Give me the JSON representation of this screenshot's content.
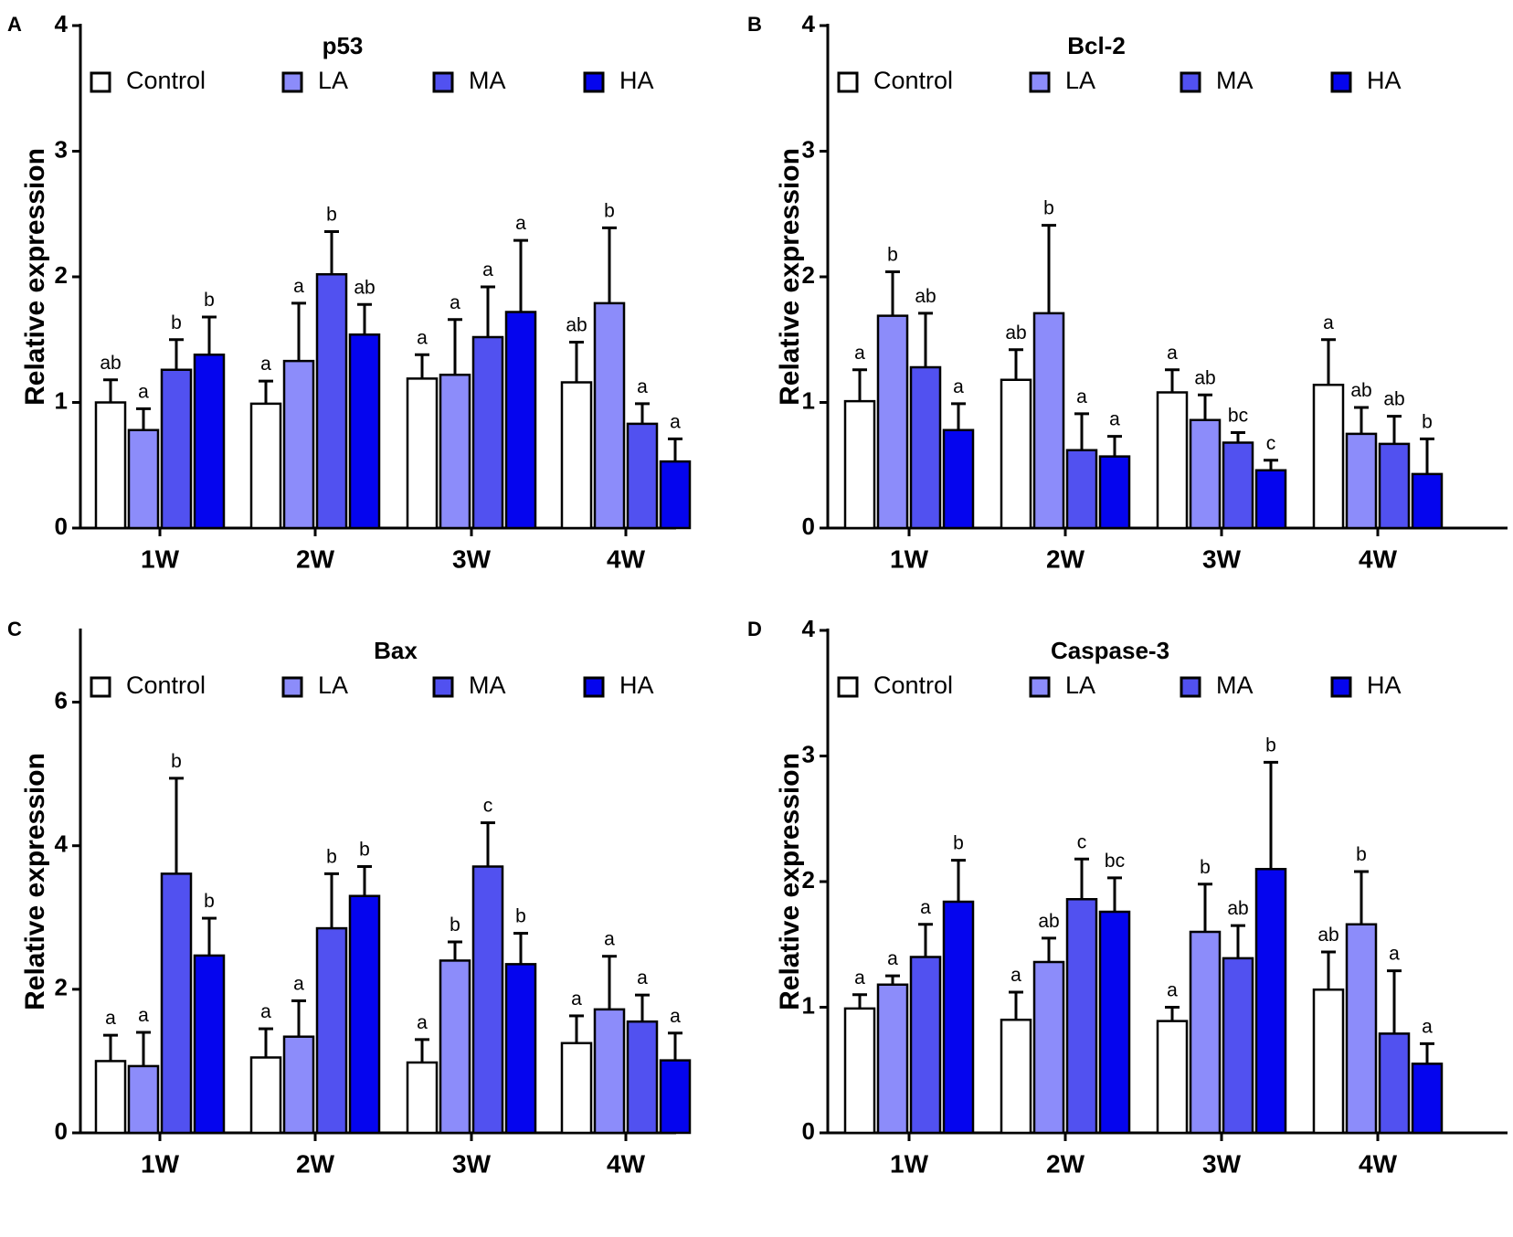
{
  "colors": {
    "Control": "#ffffff",
    "LA": "#8c8cfa",
    "MA": "#5151f0",
    "HA": "#0505ee",
    "stroke": "#000000"
  },
  "chart_data": [
    {
      "panel": "A",
      "type": "bar",
      "title": "p53",
      "ylabel": "Relative expression",
      "xlabel": "",
      "ylim": [
        0,
        4
      ],
      "yticks": [
        0,
        1,
        2,
        3,
        4
      ],
      "categories": [
        "1W",
        "2W",
        "3W",
        "4W"
      ],
      "legend": [
        "Control",
        "LA",
        "MA",
        "HA"
      ],
      "legend_position": "top",
      "series": [
        {
          "name": "Control",
          "values": [
            1.0,
            0.99,
            1.19,
            1.16
          ],
          "errors": [
            0.18,
            0.18,
            0.19,
            0.32
          ],
          "labels": [
            "ab",
            "a",
            "a",
            "ab"
          ]
        },
        {
          "name": "LA",
          "values": [
            0.78,
            1.33,
            1.22,
            1.79
          ],
          "errors": [
            0.17,
            0.46,
            0.44,
            0.6
          ],
          "labels": [
            "a",
            "a",
            "a",
            "b"
          ]
        },
        {
          "name": "MA",
          "values": [
            1.26,
            2.02,
            1.52,
            0.83
          ],
          "errors": [
            0.24,
            0.34,
            0.4,
            0.16
          ],
          "labels": [
            "b",
            "b",
            "a",
            "a"
          ]
        },
        {
          "name": "HA",
          "values": [
            1.38,
            1.54,
            1.72,
            0.53
          ],
          "errors": [
            0.3,
            0.24,
            0.57,
            0.18
          ],
          "labels": [
            "b",
            "ab",
            "a",
            "a"
          ]
        }
      ]
    },
    {
      "panel": "B",
      "type": "bar",
      "title": "Bcl-2",
      "ylabel": "Relative expression",
      "xlabel": "",
      "ylim": [
        0,
        4
      ],
      "yticks": [
        0,
        1,
        2,
        3,
        4
      ],
      "categories": [
        "1W",
        "2W",
        "3W",
        "4W"
      ],
      "legend": [
        "Control",
        "LA",
        "MA",
        "HA"
      ],
      "legend_position": "top",
      "series": [
        {
          "name": "Control",
          "values": [
            1.01,
            1.18,
            1.08,
            1.14
          ],
          "errors": [
            0.25,
            0.24,
            0.18,
            0.36
          ],
          "labels": [
            "a",
            "ab",
            "a",
            "a"
          ]
        },
        {
          "name": "LA",
          "values": [
            1.69,
            1.71,
            0.86,
            0.75
          ],
          "errors": [
            0.35,
            0.7,
            0.2,
            0.21
          ],
          "labels": [
            "b",
            "b",
            "ab",
            "ab"
          ]
        },
        {
          "name": "MA",
          "values": [
            1.28,
            0.62,
            0.68,
            0.67
          ],
          "errors": [
            0.43,
            0.29,
            0.08,
            0.22
          ],
          "labels": [
            "ab",
            "a",
            "bc",
            "ab"
          ]
        },
        {
          "name": "HA",
          "values": [
            0.78,
            0.57,
            0.46,
            0.43
          ],
          "errors": [
            0.21,
            0.16,
            0.08,
            0.28
          ],
          "labels": [
            "a",
            "a",
            "c",
            "b"
          ]
        }
      ]
    },
    {
      "panel": "C",
      "type": "bar",
      "title": "Bax",
      "ylabel": "Relative expression",
      "xlabel": "",
      "ylim": [
        0,
        7
      ],
      "yticks": [
        0,
        2,
        4,
        6
      ],
      "categories": [
        "1W",
        "2W",
        "3W",
        "4W"
      ],
      "legend": [
        "Control",
        "LA",
        "MA",
        "HA"
      ],
      "legend_position": "top",
      "series": [
        {
          "name": "Control",
          "values": [
            1.0,
            1.05,
            0.98,
            1.25
          ],
          "errors": [
            0.36,
            0.4,
            0.32,
            0.38
          ],
          "labels": [
            "a",
            "a",
            "a",
            "a"
          ]
        },
        {
          "name": "LA",
          "values": [
            0.93,
            1.34,
            2.4,
            1.72
          ],
          "errors": [
            0.47,
            0.5,
            0.26,
            0.74
          ],
          "labels": [
            "a",
            "a",
            "b",
            "a"
          ]
        },
        {
          "name": "MA",
          "values": [
            3.61,
            2.85,
            3.71,
            1.55
          ],
          "errors": [
            1.33,
            0.76,
            0.61,
            0.37
          ],
          "labels": [
            "b",
            "b",
            "c",
            "a"
          ]
        },
        {
          "name": "HA",
          "values": [
            2.47,
            3.3,
            2.35,
            1.01
          ],
          "errors": [
            0.52,
            0.41,
            0.43,
            0.38
          ],
          "labels": [
            "b",
            "b",
            "b",
            "a"
          ]
        }
      ]
    },
    {
      "panel": "D",
      "type": "bar",
      "title": "Caspase-3",
      "ylabel": "Relative expression",
      "xlabel": "",
      "ylim": [
        0,
        4
      ],
      "yticks": [
        0,
        1,
        2,
        3,
        4
      ],
      "categories": [
        "1W",
        "2W",
        "3W",
        "4W"
      ],
      "legend": [
        "Control",
        "LA",
        "MA",
        "HA"
      ],
      "legend_position": "top",
      "series": [
        {
          "name": "Control",
          "values": [
            0.99,
            0.9,
            0.89,
            1.14
          ],
          "errors": [
            0.11,
            0.22,
            0.11,
            0.3
          ],
          "labels": [
            "a",
            "a",
            "a",
            "ab"
          ]
        },
        {
          "name": "LA",
          "values": [
            1.18,
            1.36,
            1.6,
            1.66
          ],
          "errors": [
            0.07,
            0.19,
            0.38,
            0.42
          ],
          "labels": [
            "a",
            "ab",
            "b",
            "b"
          ]
        },
        {
          "name": "MA",
          "values": [
            1.4,
            1.86,
            1.39,
            0.79
          ],
          "errors": [
            0.26,
            0.32,
            0.26,
            0.5
          ],
          "labels": [
            "a",
            "c",
            "ab",
            "a"
          ]
        },
        {
          "name": "HA",
          "values": [
            1.84,
            1.76,
            2.1,
            0.55
          ],
          "errors": [
            0.33,
            0.27,
            0.85,
            0.16
          ],
          "labels": [
            "b",
            "bc",
            "b",
            "a"
          ]
        }
      ]
    }
  ]
}
